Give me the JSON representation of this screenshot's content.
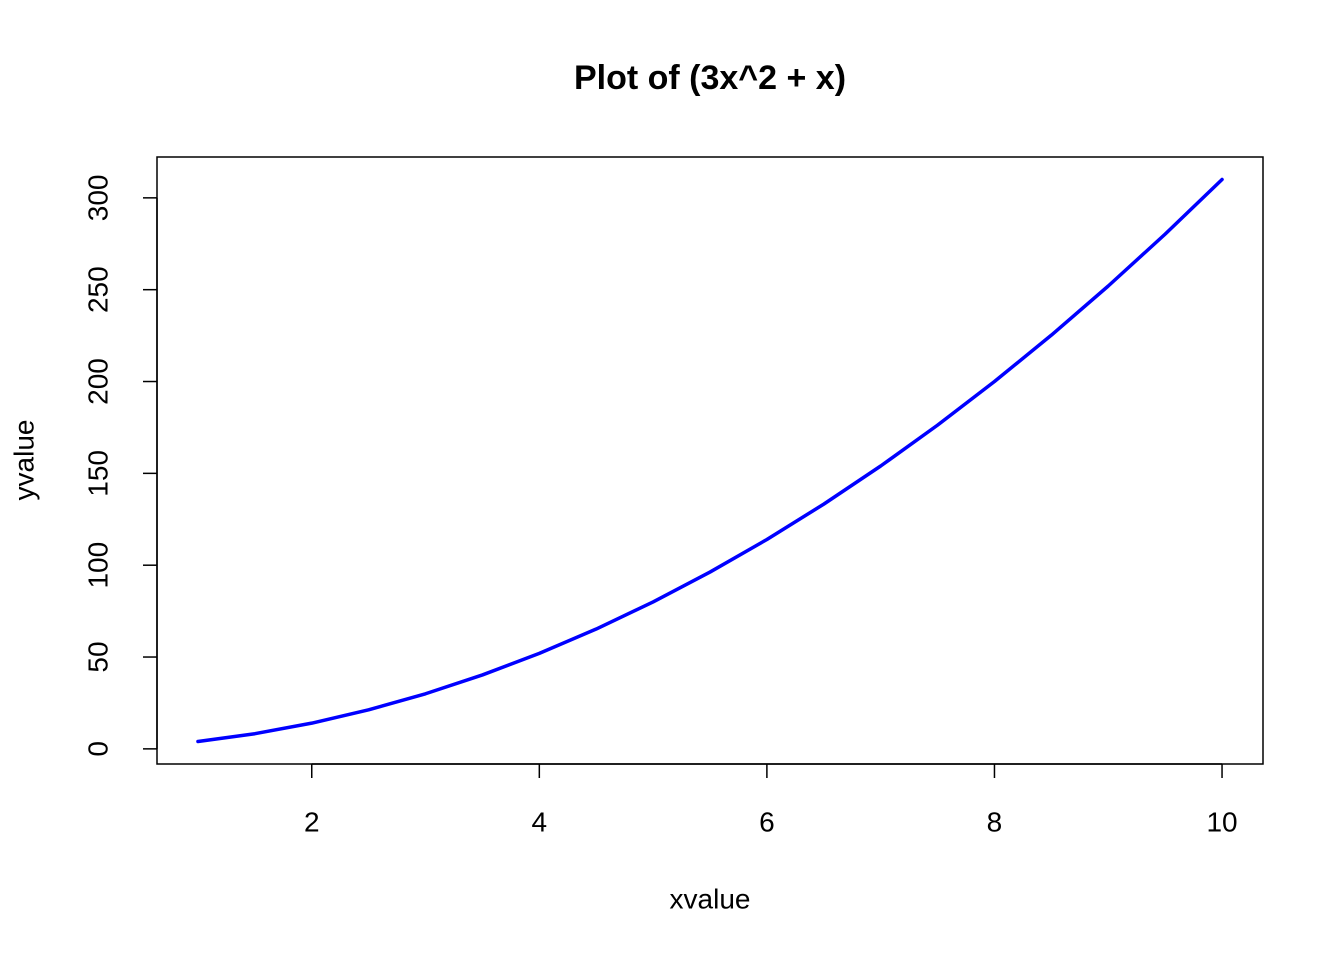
{
  "chart_data": {
    "type": "line",
    "title": "Plot of (3x^2 + x)",
    "x_label": "xvalue",
    "y_label": "yvalue",
    "x": [
      1,
      1.5,
      2,
      2.5,
      3,
      3.5,
      4,
      4.5,
      5,
      5.5,
      6,
      6.5,
      7,
      7.5,
      8,
      8.5,
      9,
      9.5,
      10
    ],
    "values": [
      4,
      8.25,
      14,
      21.25,
      30,
      40.25,
      52,
      65.25,
      80,
      96.25,
      114,
      133.25,
      154,
      176.25,
      200,
      225.25,
      252,
      280.25,
      310
    ],
    "color": "#0000ff",
    "xlim": [
      0.64,
      10.36
    ],
    "xticks": [
      2,
      4,
      6,
      8,
      10
    ],
    "ylim": [
      -8.24,
      322.24
    ],
    "yticks": [
      0,
      50,
      100,
      150,
      200,
      250,
      300
    ],
    "grid": false
  }
}
